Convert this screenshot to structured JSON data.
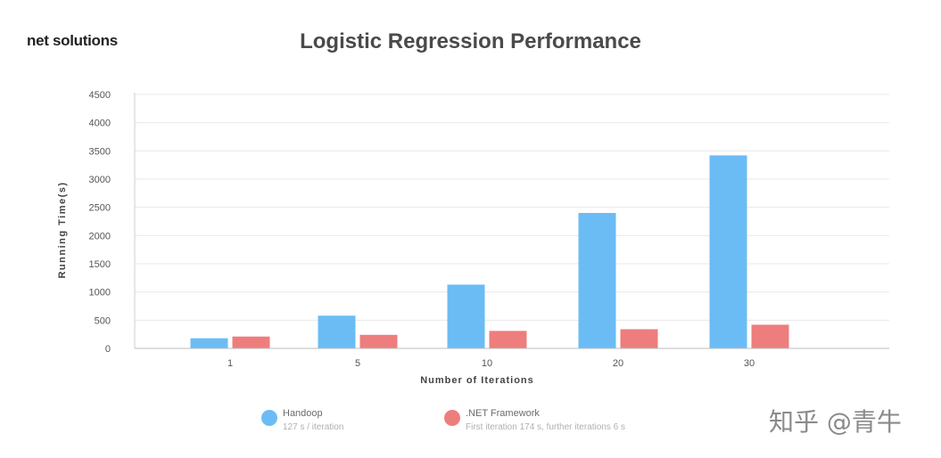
{
  "logo": "net solutions",
  "watermark": "知乎 @青牛",
  "chart_data": {
    "type": "bar",
    "title": "Logistic Regression Performance",
    "xlabel": "Number of Iterations",
    "ylabel": "Running Time(s)",
    "categories": [
      "1",
      "5",
      "10",
      "20",
      "30"
    ],
    "ylim": [
      0,
      4500
    ],
    "yticks": [
      0,
      500,
      1000,
      1500,
      2000,
      2500,
      3000,
      3500,
      4000,
      4500
    ],
    "grid": true,
    "legend_position": "bottom",
    "series": [
      {
        "name": "Handoop",
        "note": "127 s / iteration",
        "color": "#6bbcf5",
        "values": [
          180,
          580,
          1130,
          2400,
          3420
        ]
      },
      {
        "name": ".NET Framework",
        "note": "First iteration 174 s, further iterations 6 s",
        "color": "#ee7d7d",
        "values": [
          210,
          240,
          310,
          340,
          420
        ]
      }
    ]
  }
}
